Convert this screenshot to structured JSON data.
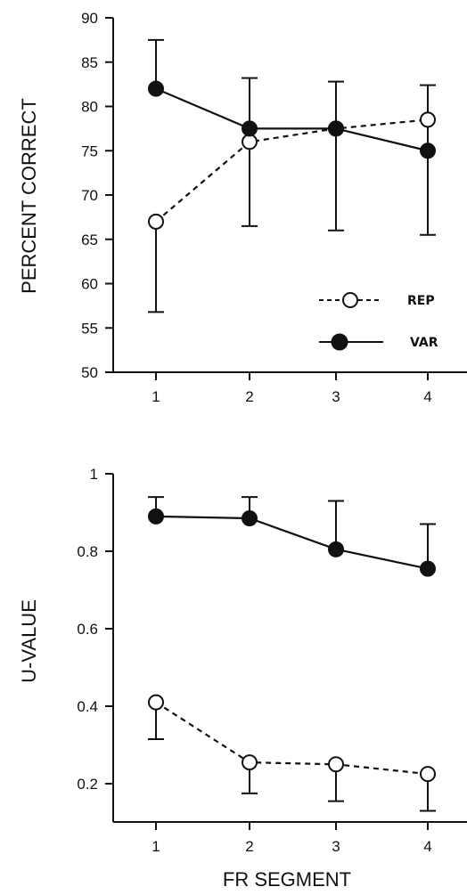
{
  "chart_data": [
    {
      "type": "line",
      "title": "",
      "xlabel": "",
      "ylabel": "PERCENT CORRECT",
      "categories": [
        "1",
        "2",
        "3",
        "4"
      ],
      "ylim": [
        50,
        90
      ],
      "yticks": [
        "50",
        "55",
        "60",
        "65",
        "70",
        "75",
        "80",
        "85",
        "90"
      ],
      "grid": false,
      "legend_position": "bottom-right",
      "series": [
        {
          "name": "REP",
          "marker": "open-circle",
          "line": "dashed",
          "values": [
            67,
            76,
            77.5,
            78.5
          ],
          "error_lower": [
            56.8,
            66.5,
            66,
            65.5
          ]
        },
        {
          "name": "VAR",
          "marker": "filled-circle",
          "line": "solid",
          "values": [
            82,
            77.5,
            77.5,
            75
          ],
          "error_upper": [
            87.5,
            83.2,
            82.8,
            82.4
          ]
        }
      ]
    },
    {
      "type": "line",
      "title": "",
      "xlabel": "FR SEGMENT",
      "ylabel": "U-VALUE",
      "categories": [
        "1",
        "2",
        "3",
        "4"
      ],
      "ylim": [
        0.1,
        1.0
      ],
      "yticks": [
        "0.2",
        "0.4",
        "0.6",
        "0.8",
        "1"
      ],
      "grid": false,
      "series": [
        {
          "name": "REP",
          "marker": "open-circle",
          "line": "dashed",
          "values": [
            0.41,
            0.255,
            0.25,
            0.225
          ],
          "error_lower": [
            0.315,
            0.175,
            0.155,
            0.13
          ]
        },
        {
          "name": "VAR",
          "marker": "filled-circle",
          "line": "solid",
          "values": [
            0.89,
            0.885,
            0.805,
            0.755
          ],
          "error_upper": [
            0.94,
            0.94,
            0.93,
            0.87
          ]
        }
      ]
    }
  ]
}
